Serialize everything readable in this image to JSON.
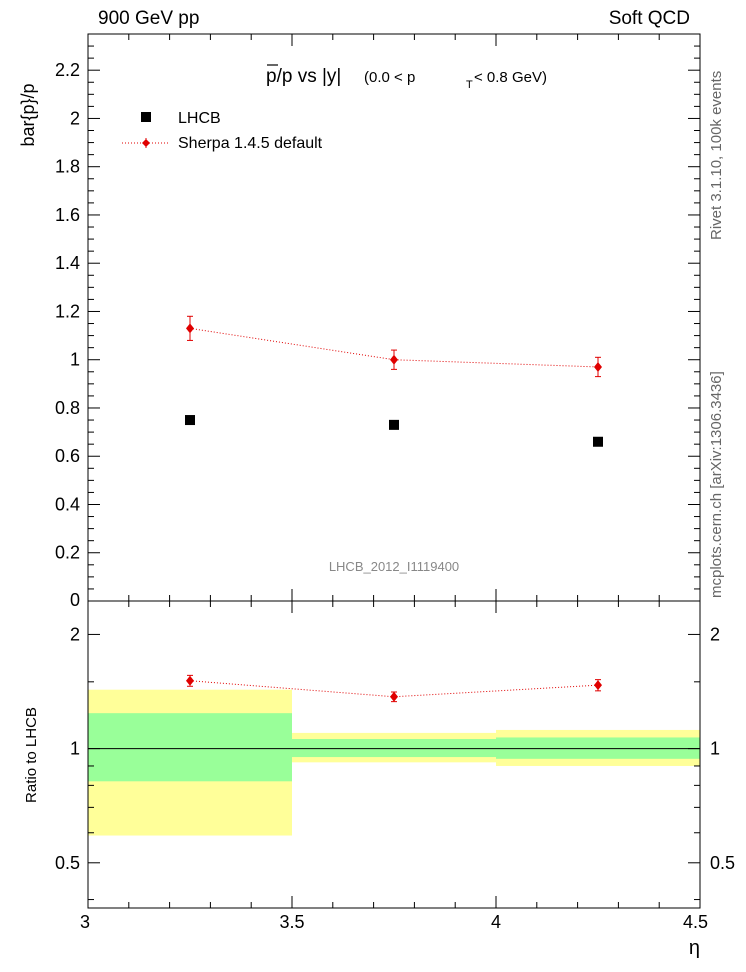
{
  "header": {
    "left": "900 GeV pp",
    "right": "Soft QCD"
  },
  "side": {
    "rivet": "Rivet 3.1.10, 100k events",
    "mcplots": "mcplots.cern.ch [arXiv:1306.3436]"
  },
  "chart_data": [
    {
      "type": "scatter",
      "title_main": "p/p vs |y|",
      "title_bar": "p",
      "title_cond_pre": "(0.0 < p",
      "title_cond_sub": "T",
      "title_cond_post": " < 0.8 GeV)",
      "ylabel": "bar{p}/p",
      "analysis_label": "LHCB_2012_I1119400",
      "xlim": [
        3.0,
        4.5
      ],
      "ylim": [
        0,
        2.35
      ],
      "yticks": [
        0.2,
        0.4,
        0.6,
        0.8,
        1,
        1.2,
        1.4,
        1.6,
        1.8,
        2,
        2.2
      ],
      "ytick_labels": [
        "0.2",
        "0.4",
        "0.6",
        "0.8",
        "1",
        "1.2",
        "1.4",
        "1.6",
        "1.8",
        "2",
        "2.2"
      ],
      "y_bottom_label": "0",
      "series": [
        {
          "name": "LHCB",
          "marker": "square",
          "color": "#000000",
          "x": [
            3.25,
            3.75,
            4.25
          ],
          "y": [
            0.75,
            0.73,
            0.66
          ],
          "err": [
            0.005,
            0.005,
            0.005
          ]
        },
        {
          "name": "Sherpa 1.4.5 default",
          "marker": "diamond",
          "color": "#e00000",
          "linestyle": "dotted",
          "x": [
            3.25,
            3.75,
            4.25
          ],
          "y": [
            1.13,
            1.0,
            0.97
          ],
          "err": [
            0.05,
            0.04,
            0.04
          ]
        }
      ]
    },
    {
      "type": "ratio",
      "ylabel": "Ratio to LHCB",
      "xlabel": "η",
      "xlim": [
        3.0,
        4.5
      ],
      "ylim": [
        0.38,
        2.45
      ],
      "yscale": "log",
      "yticks": [
        0.5,
        1,
        2
      ],
      "ytick_labels": [
        "0.5",
        "1",
        "2"
      ],
      "xticks": [
        3.0,
        3.5,
        4.0,
        4.5
      ],
      "xtick_labels": [
        "3",
        "3.5",
        "4",
        "4.5"
      ],
      "bands": [
        {
          "x": [
            3.0,
            3.5
          ],
          "inner": [
            0.82,
            1.24
          ],
          "outer": [
            0.59,
            1.43
          ]
        },
        {
          "x": [
            3.5,
            4.0
          ],
          "inner": [
            0.95,
            1.06
          ],
          "outer": [
            0.92,
            1.1
          ]
        },
        {
          "x": [
            4.0,
            4.5
          ],
          "inner": [
            0.94,
            1.07
          ],
          "outer": [
            0.9,
            1.12
          ]
        }
      ],
      "ratio": {
        "x": [
          3.25,
          3.75,
          4.25
        ],
        "y": [
          1.51,
          1.37,
          1.47
        ],
        "err": [
          0.05,
          0.04,
          0.05
        ]
      }
    }
  ]
}
